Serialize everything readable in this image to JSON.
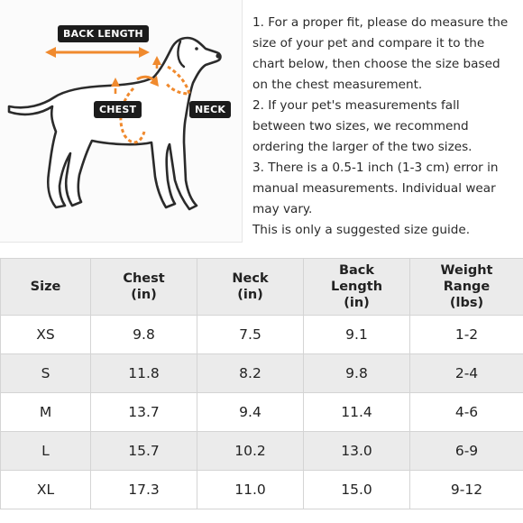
{
  "diagram": {
    "labels": {
      "back_length": "BACK LENGTH",
      "chest": "CHEST",
      "neck": "NECK"
    },
    "colors": {
      "arrow": "#f08a2e",
      "outline": "#2b2b2b",
      "label_bg": "#1c1c1c"
    }
  },
  "instructions": [
    "1. For a proper fit, please do measure the size of your pet and compare it to the chart below, then choose the size based on the chest measurement.",
    "2. If your pet's measurements fall between two sizes, we recommend ordering the larger of the two sizes.",
    "3. There is a 0.5-1 inch (1-3 cm) error in manual measurements. Individual wear may vary.",
    "This is only a suggested size guide."
  ],
  "table": {
    "headers": [
      [
        "Size"
      ],
      [
        "Chest",
        "(in)"
      ],
      [
        "Neck",
        "(in)"
      ],
      [
        "Back",
        "Length",
        "(in)"
      ],
      [
        "Weight",
        "Range",
        "(lbs)"
      ]
    ],
    "rows": [
      [
        "XS",
        "9.8",
        "7.5",
        "9.1",
        "1-2"
      ],
      [
        "S",
        "11.8",
        "8.2",
        "9.8",
        "2-4"
      ],
      [
        "M",
        "13.7",
        "9.4",
        "11.4",
        "4-6"
      ],
      [
        "L",
        "15.7",
        "10.2",
        "13.0",
        "6-9"
      ],
      [
        "XL",
        "17.3",
        "11.0",
        "15.0",
        "9-12"
      ]
    ]
  }
}
